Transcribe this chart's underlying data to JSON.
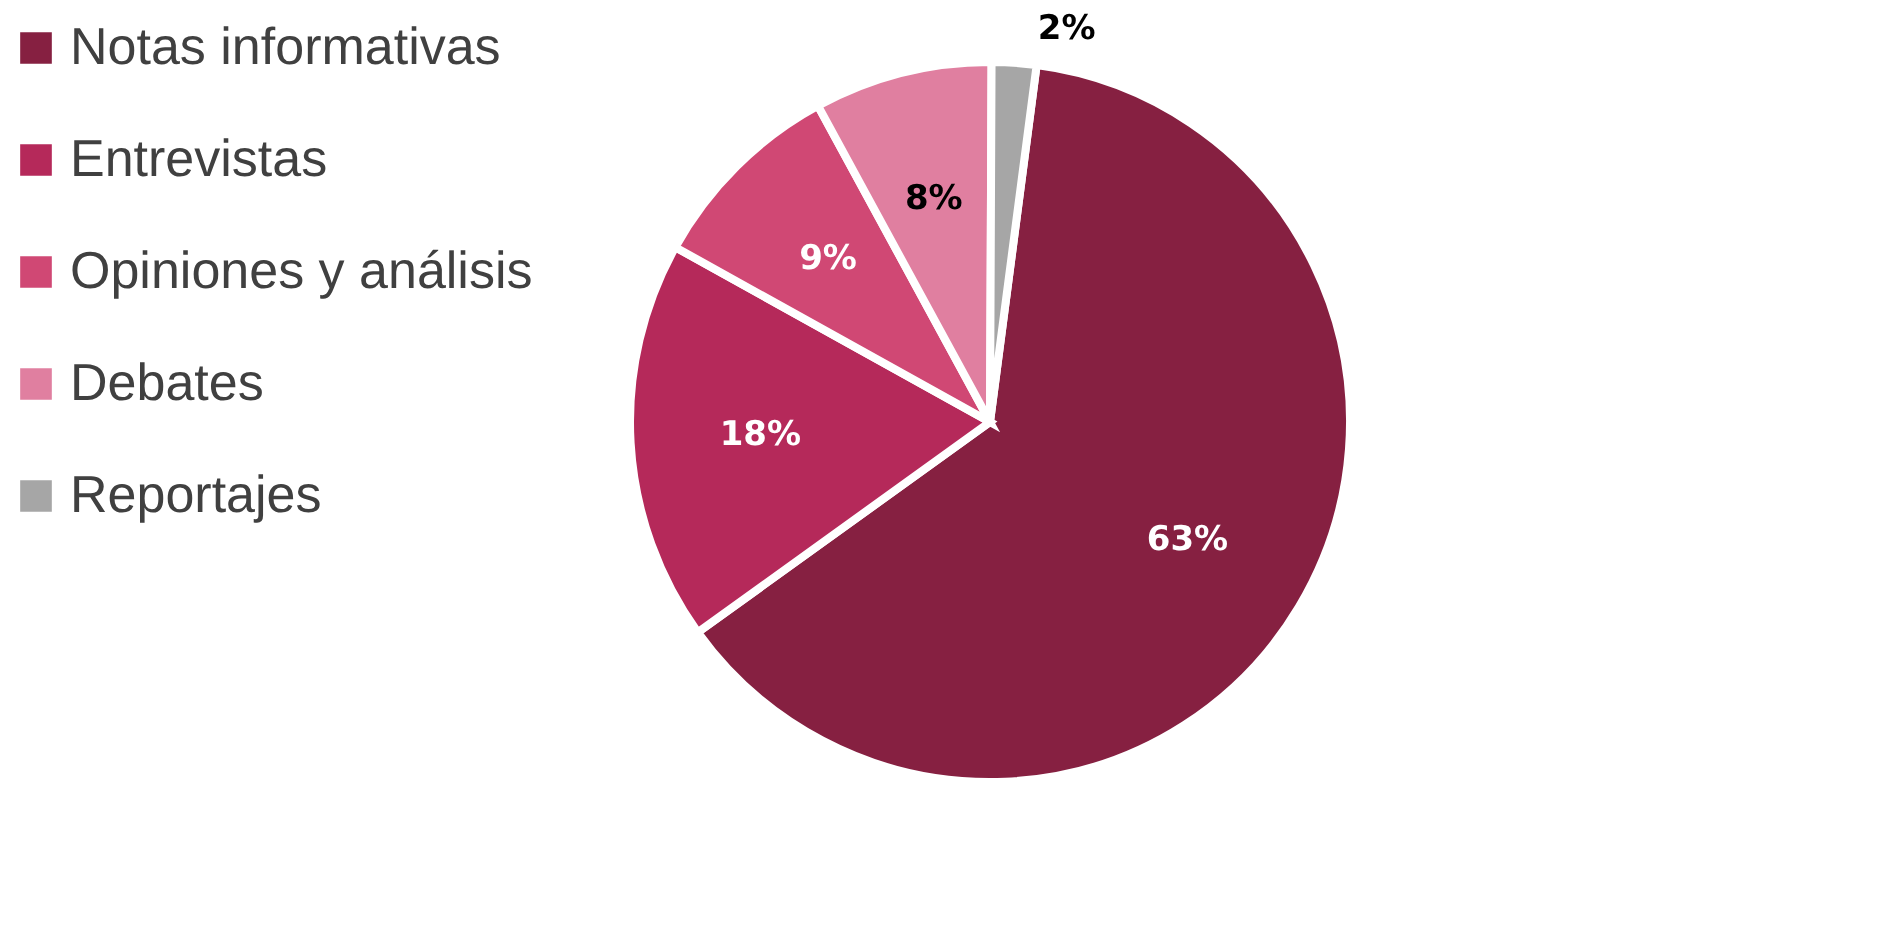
{
  "chart_data": {
    "type": "pie",
    "categories": [
      "Notas informativas",
      "Entrevistas",
      "Opiniones y análisis",
      "Debates",
      "Reportajes"
    ],
    "values": [
      63,
      18,
      9,
      8,
      2
    ],
    "colors": [
      "#862041",
      "#b5295a",
      "#d04874",
      "#e07fa0",
      "#a6a6a6"
    ],
    "value_labels": [
      "63%",
      "18%",
      "9%",
      "8%",
      "2%"
    ],
    "legend": "left"
  }
}
